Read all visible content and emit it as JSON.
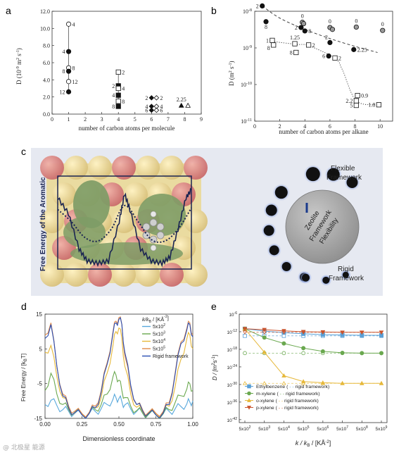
{
  "panels": {
    "a": "a",
    "b": "b",
    "c": "c",
    "d": "d",
    "e": "e"
  },
  "watermark": "@ 北极星 能源",
  "panel_c": {
    "ylabel": "Free Energy of the Aromatic",
    "label_top": [
      "Flexible",
      "Framework"
    ],
    "label_bottom": [
      "Rigid",
      "Framework"
    ],
    "center": [
      "Zeolite",
      "Framework",
      "Flexibility"
    ],
    "colors": {
      "frame_bg": "#e6e9f1",
      "sphere": "#ecd98a",
      "sphere_red": "#d97a7a",
      "green": "#7e9c66",
      "dot": "#111111",
      "glow": "#8aa2e0"
    }
  },
  "chart_data": [
    {
      "panel": "a",
      "type": "scatter",
      "title": "",
      "xlabel": "number of carbon atoms per molecule",
      "ylabel_parts": [
        "D (10",
        "-9",
        " m",
        "2",
        " s",
        "-1",
        ")"
      ],
      "xlim": [
        0,
        9
      ],
      "ylim": [
        0,
        12
      ],
      "xticks": [
        "0",
        "1",
        "2",
        "3",
        "4",
        "5",
        "6",
        "7",
        "8",
        "9"
      ],
      "yticks": [
        "0.0",
        "2.0",
        "4.0",
        "6.0",
        "8.0",
        "10.0",
        "12.0"
      ],
      "points": [
        {
          "x": 1,
          "y": 10.5,
          "marker": "circle-open",
          "label": "4",
          "side": "r"
        },
        {
          "x": 1,
          "y": 7.3,
          "marker": "circle",
          "label": "4",
          "side": "l"
        },
        {
          "x": 1,
          "y": 5.4,
          "marker": "circle-open",
          "label": "8",
          "side": "r"
        },
        {
          "x": 1,
          "y": 5.0,
          "marker": "circle",
          "label": "8",
          "side": "l"
        },
        {
          "x": 1,
          "y": 3.8,
          "marker": "circle-open",
          "label": "12",
          "side": "r"
        },
        {
          "x": 1,
          "y": 2.6,
          "marker": "circle",
          "label": "12",
          "side": "l"
        },
        {
          "x": 4,
          "y": 4.9,
          "marker": "square-open",
          "label": "2",
          "side": "r"
        },
        {
          "x": 4,
          "y": 3.3,
          "marker": "square",
          "label": "2",
          "side": "l"
        },
        {
          "x": 4,
          "y": 3.0,
          "marker": "square-open",
          "label": "4",
          "side": "r"
        },
        {
          "x": 4,
          "y": 2.2,
          "marker": "square",
          "label": "4",
          "side": "l"
        },
        {
          "x": 4,
          "y": 1.5,
          "marker": "square-open",
          "label": "8",
          "side": "r"
        },
        {
          "x": 4,
          "y": 0.9,
          "marker": "square",
          "label": "8",
          "side": "l"
        },
        {
          "x": 6,
          "y": 1.9,
          "marker": "diamond",
          "label": "2",
          "side": "l"
        },
        {
          "x": 6.3,
          "y": 1.9,
          "marker": "diamond-open",
          "label": "2",
          "side": "r"
        },
        {
          "x": 6,
          "y": 0.9,
          "marker": "diamond",
          "label": "4",
          "side": "l"
        },
        {
          "x": 6.3,
          "y": 0.9,
          "marker": "diamond-open",
          "label": "4",
          "side": "r"
        },
        {
          "x": 6,
          "y": 0.45,
          "marker": "diamond",
          "label": "6",
          "side": "l"
        },
        {
          "x": 6.3,
          "y": 0.45,
          "marker": "diamond-open",
          "label": "6",
          "side": "r"
        },
        {
          "x": 7.8,
          "y": 1.0,
          "marker": "triangle",
          "label": "2.25",
          "side": "t"
        },
        {
          "x": 8.2,
          "y": 1.0,
          "marker": "triangle-open",
          "label": "",
          "side": "r"
        }
      ],
      "vlines": [
        {
          "x": 1,
          "y": [
            2.6,
            10.5
          ]
        },
        {
          "x": 4,
          "y": [
            0.9,
            4.9
          ]
        }
      ]
    },
    {
      "panel": "b",
      "type": "scatter",
      "title": "",
      "xlabel": "number of carbon atoms per alkane",
      "ylabel_parts": [
        "D (m",
        "2",
        " s",
        "-1",
        ")"
      ],
      "scale": "log",
      "xlim": [
        0,
        11
      ],
      "ylim_exp": [
        -11,
        -8
      ],
      "xticks": [
        "0",
        "2",
        "4",
        "6",
        "8",
        "10"
      ],
      "yticks_exp": [
        "-11",
        "-10",
        "-9",
        "-8"
      ],
      "points": [
        {
          "x": 0.6,
          "y": 1.4e-08,
          "marker": "circle",
          "label": "2",
          "side": "l"
        },
        {
          "x": 0.9,
          "y": 5.2e-09,
          "marker": "circle",
          "label": "8",
          "side": "b"
        },
        {
          "x": 3.8,
          "y": 5e-09,
          "marker": "circle-gray",
          "label": "0",
          "side": "t"
        },
        {
          "x": 3.9,
          "y": 4.6e-09,
          "marker": "circle-gray",
          "label": "",
          "side": "r"
        },
        {
          "x": 3.7,
          "y": 3.6e-09,
          "marker": "circle",
          "label": "2",
          "side": "l"
        },
        {
          "x": 4.0,
          "y": 2.9e-09,
          "marker": "circle",
          "label": "8",
          "side": "r"
        },
        {
          "x": 6.0,
          "y": 3.6e-09,
          "marker": "circle-gray",
          "label": "0",
          "side": "t"
        },
        {
          "x": 6.2,
          "y": 3.2e-09,
          "marker": "circle-gray",
          "label": "",
          "side": "r"
        },
        {
          "x": 6.0,
          "y": 1.4e-09,
          "marker": "circle",
          "label": "2",
          "side": "tl"
        },
        {
          "x": 5.9,
          "y": 6e-10,
          "marker": "circle",
          "label": "6",
          "side": "l"
        },
        {
          "x": 8.1,
          "y": 3.7e-09,
          "marker": "circle-gray",
          "label": "0",
          "side": "t"
        },
        {
          "x": 10.2,
          "y": 3e-09,
          "marker": "circle-gray",
          "label": "0",
          "side": "t"
        },
        {
          "x": 7.9,
          "y": 9e-10,
          "marker": "circle",
          "label": "2.25",
          "side": "r"
        },
        {
          "x": 1.4,
          "y": 1.6e-09,
          "marker": "square-open",
          "label": "1",
          "side": "l"
        },
        {
          "x": 1.5,
          "y": 1.2e-09,
          "marker": "square-open",
          "label": "8",
          "side": "lb"
        },
        {
          "x": 3.2,
          "y": 1.3e-09,
          "marker": "square-open",
          "label": "1.25",
          "side": "t"
        },
        {
          "x": 3.3,
          "y": 7.5e-10,
          "marker": "square-open",
          "label": "8",
          "side": "l"
        },
        {
          "x": 4.3,
          "y": 1.2e-09,
          "marker": "square-open",
          "label": "2",
          "side": "r"
        },
        {
          "x": 6.4,
          "y": 5.3e-10,
          "marker": "square-open",
          "label": "2",
          "side": "r"
        },
        {
          "x": 8.2,
          "y": 5e-11,
          "marker": "square-open",
          "label": "0.9",
          "side": "r"
        },
        {
          "x": 8.1,
          "y": 3.6e-11,
          "marker": "square-open",
          "label": "2.2",
          "side": "l"
        },
        {
          "x": 8.1,
          "y": 2.7e-11,
          "marker": "square-open",
          "label": "5",
          "side": "l"
        },
        {
          "x": 9.9,
          "y": 2.8e-11,
          "marker": "square-open",
          "label": "1.8",
          "side": "l"
        }
      ],
      "curves": [
        {
          "style": "dashed",
          "x": [
            0.6,
            2,
            4,
            6,
            8,
            9.8
          ],
          "y": [
            1.4e-08,
            6.5e-09,
            3.2e-09,
            1.8e-09,
            1.1e-09,
            7.5e-10
          ]
        },
        {
          "style": "dotted",
          "x": [
            1.4,
            3.3,
            4.3,
            6.4,
            7.0,
            8.1,
            9.9
          ],
          "y": [
            1.5e-09,
            1.25e-09,
            1.15e-09,
            5.2e-10,
            2.5e-10,
            3.6e-11,
            2.8e-11
          ]
        }
      ]
    },
    {
      "panel": "c",
      "type": "line",
      "title": "",
      "series": [
        {
          "style": "solid",
          "color": "#1a2452",
          "x": [
            0,
            0.08,
            0.16,
            0.22,
            0.3,
            0.38,
            0.46,
            0.5,
            0.54,
            0.62,
            0.7,
            0.78,
            0.84,
            0.9,
            0.96,
            1.0
          ],
          "y": [
            0.85,
            0.65,
            0.2,
            0.05,
            0.02,
            0.05,
            0.55,
            0.9,
            0.7,
            0.2,
            0.05,
            0.02,
            0.1,
            0.45,
            0.85,
            0.95
          ]
        },
        {
          "style": "dotted",
          "color": "#1a2452",
          "x": [
            0,
            0.1,
            0.2,
            0.3,
            0.4,
            0.5,
            0.6,
            0.7,
            0.8,
            0.9,
            1.0
          ],
          "y": [
            0.7,
            0.55,
            0.35,
            0.3,
            0.45,
            0.75,
            0.55,
            0.32,
            0.3,
            0.45,
            0.72
          ]
        }
      ]
    },
    {
      "panel": "d",
      "type": "line",
      "title": "",
      "xlabel": "Dimensionless coordinate",
      "ylabel": "Free Energy / [k",
      "ylabel_sub": "B",
      "ylabel_end": "T]",
      "xlim": [
        0,
        1.0
      ],
      "ylim": [
        -15,
        15
      ],
      "xticks": [
        "0.00",
        "0.25",
        "0.50",
        "0.75",
        "1.00"
      ],
      "yticks": [
        "-15",
        "-5",
        "5",
        "15"
      ],
      "legend_title": "k/k",
      "legend_title_sub": "B",
      "legend_title_end": " / [KÅ",
      "legend_title_sup": "-2",
      "legend_title_close": "]",
      "legend_position": "top-right",
      "x": [
        0,
        0.04,
        0.08,
        0.12,
        0.16,
        0.2,
        0.25,
        0.3,
        0.34,
        0.38,
        0.42,
        0.46,
        0.48,
        0.5,
        0.52,
        0.54,
        0.58,
        0.62,
        0.66,
        0.7,
        0.75,
        0.8,
        0.84,
        0.88,
        0.92,
        0.96,
        0.98,
        1.0
      ],
      "series": [
        {
          "name": "5x10",
          "exp": "2",
          "color": "#58a8dc",
          "values": [
            -11,
            -9.8,
            -11.3,
            -12.5,
            -13,
            -13.6,
            -14,
            -13.6,
            -13,
            -12.2,
            -11,
            -9.5,
            -9,
            -9.3,
            -10.2,
            -11.1,
            -12.3,
            -13,
            -13.5,
            -13.9,
            -14,
            -13.7,
            -13,
            -12.3,
            -11.6,
            -10.8,
            -10.3,
            -10
          ]
        },
        {
          "name": "5x10",
          "exp": "3",
          "color": "#6aa84f",
          "values": [
            -7,
            -2,
            -8,
            -11,
            -12.5,
            -13.3,
            -13.8,
            -13.3,
            -12.5,
            -11,
            -8,
            -3,
            -2.5,
            -4,
            -7,
            -9,
            -11.5,
            -12.8,
            -13.4,
            -13.8,
            -14,
            -13.6,
            -12.5,
            -10.5,
            -8.5,
            -6.5,
            -5,
            -7
          ]
        },
        {
          "name": "5x10",
          "exp": "4",
          "color": "#e6b83a",
          "values": [
            4,
            6,
            -3,
            -9,
            -12,
            -13.5,
            -13.8,
            -13.5,
            -12,
            -9,
            -2,
            6,
            10,
            11,
            8,
            0,
            -8,
            -11.8,
            -13,
            -13.5,
            -13.6,
            -13.2,
            -11.5,
            -6,
            2,
            8,
            9,
            5
          ]
        },
        {
          "name": "5x10",
          "exp": "5",
          "color": "#e08a4a",
          "values": [
            9,
            12.5,
            0,
            -8,
            -11.5,
            -13,
            -13.6,
            -13.2,
            -11.5,
            -7,
            1,
            10,
            13,
            14,
            12,
            3,
            -6,
            -11,
            -12.5,
            -13.3,
            -13.5,
            -13,
            -10.5,
            -2,
            7,
            11,
            12.5,
            9
          ]
        },
        {
          "name": "Rigid framework",
          "exp": "",
          "color": "#2a4db2",
          "values": [
            8,
            12,
            0,
            -8.5,
            -12,
            -13.4,
            -14,
            -13.5,
            -12,
            -7.5,
            0.5,
            9.5,
            12.5,
            13.5,
            12,
            4,
            -5.5,
            -11,
            -12.8,
            -13.6,
            -14,
            -13.4,
            -11,
            -2.5,
            6.5,
            10.5,
            12,
            8.5
          ]
        }
      ]
    },
    {
      "panel": "e",
      "type": "line",
      "title": "",
      "xlabel_parts": [
        "k / k",
        "B",
        " / [KÅ",
        "-2",
        "]"
      ],
      "ylabel_parts": [
        "D / [m",
        "2",
        "s",
        "-1",
        "]"
      ],
      "scale": "log",
      "x_exp": [
        "2",
        "3",
        "4",
        "5",
        "6",
        "7",
        "8",
        "9"
      ],
      "xticks_prefix": "5x10",
      "yticks_exp": [
        "-6",
        "-12",
        "-18",
        "-24",
        "-30",
        "-36",
        "-42"
      ],
      "ylim_exp": [
        -43,
        -6
      ],
      "series": [
        {
          "name": "Ethylbenzene",
          "rigid_label": "rigid framework",
          "marker": "square",
          "color": "#5aa0d6",
          "values_exp": [
            -11,
            -11.8,
            -12.3,
            -12.7,
            -13,
            -13.1,
            -13.2,
            -13.2
          ],
          "rigid_exp": -13.4
        },
        {
          "name": "m-xylene",
          "rigid_label": "rigid framework",
          "marker": "circle",
          "color": "#6aa84f",
          "values_exp": [
            -11,
            -14,
            -16,
            -17.6,
            -18.7,
            -19.2,
            -19.3,
            -19.3
          ],
          "rigid_exp": -19.3
        },
        {
          "name": "o-xylene",
          "rigid_label": "rigid framework",
          "marker": "triangle",
          "color": "#e6b83a",
          "values_exp": [
            -11,
            -19,
            -27,
            -29,
            -29.4,
            -29.6,
            -29.6,
            -29.6
          ],
          "rigid_exp": -29.6
        },
        {
          "name": "p-xylene",
          "rigid_label": "rigid framework",
          "marker": "triangle-down",
          "color": "#c9532d",
          "values_exp": [
            -11,
            -11.3,
            -11.7,
            -12,
            -12.1,
            -12.2,
            -12.2,
            -12.2
          ],
          "rigid_exp": -12.2
        }
      ],
      "legend_position": "bottom-left"
    }
  ]
}
